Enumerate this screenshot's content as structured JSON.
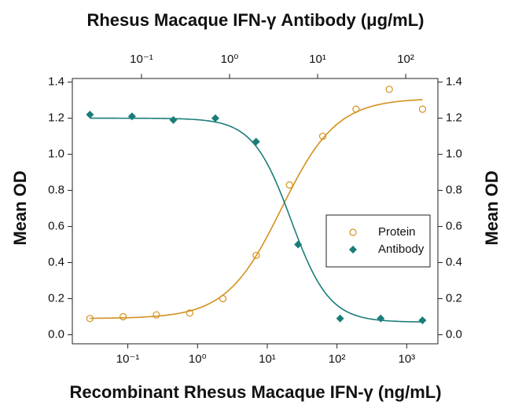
{
  "chart_data": {
    "type": "scatter",
    "title": "Rhesus Macaque IFN-γ Antibody (μg/mL)",
    "x_label": "Recombinant Rhesus Macaque IFN-γ (ng/mL)",
    "y_label": "Mean OD",
    "y2_label": "Mean OD",
    "x_scale": "log",
    "xlim": [
      0.016,
      2800
    ],
    "xticks": [
      {
        "value": 0.1,
        "label": "10⁻¹"
      },
      {
        "value": 1,
        "label": "10⁰"
      },
      {
        "value": 10,
        "label": "10¹"
      },
      {
        "value": 100,
        "label": "10²"
      },
      {
        "value": 1000,
        "label": "10³"
      }
    ],
    "x2lim": [
      0.0164,
      232
    ],
    "x2ticks": [
      {
        "value": 0.1,
        "label": "10⁻¹"
      },
      {
        "value": 1,
        "label": "10⁰"
      },
      {
        "value": 10,
        "label": "10¹"
      },
      {
        "value": 100,
        "label": "10²"
      }
    ],
    "ylim": [
      -0.05,
      1.42
    ],
    "yticks": [
      {
        "value": 0,
        "label": "0.0"
      },
      0.2,
      0.4,
      0.6,
      0.8,
      {
        "value": 1,
        "label": "1.0"
      },
      1.2,
      1.4
    ],
    "y2lim": [
      -0.05,
      1.42
    ],
    "y2ticks": [
      {
        "value": 0,
        "label": "0.0"
      },
      0.2,
      0.4,
      0.6,
      0.8,
      {
        "value": 1,
        "label": "1.0"
      },
      1.2,
      1.4
    ],
    "legend": "center right",
    "series": [
      {
        "name": "Protein",
        "color": "#d4901c",
        "marker": "circle",
        "xaxis": "x",
        "x": [
          0.0286,
          0.0857,
          0.257,
          0.772,
          2.31,
          6.94,
          20.8,
          62.5,
          187.5,
          562.5,
          1687
        ],
        "values": [
          0.09,
          0.1,
          0.11,
          0.12,
          0.2,
          0.44,
          0.83,
          1.1,
          1.25,
          1.36,
          1.25
        ],
        "fit": {
          "start": 0.09,
          "end": 1.31,
          "ec50": 16,
          "slope": 1.1
        }
      },
      {
        "name": "Antibody",
        "color": "#1a7d78",
        "marker": "diamond",
        "xaxis": "x2",
        "x": [
          0.026,
          0.078,
          0.23,
          0.69,
          2.0,
          6.0,
          18,
          52,
          155
        ],
        "values": [
          1.22,
          1.21,
          1.19,
          1.2,
          1.07,
          0.5,
          0.09,
          0.09,
          0.08
        ],
        "fit": {
          "start": 1.2,
          "end": 0.07,
          "ec50": 5,
          "slope": 2
        }
      }
    ]
  }
}
